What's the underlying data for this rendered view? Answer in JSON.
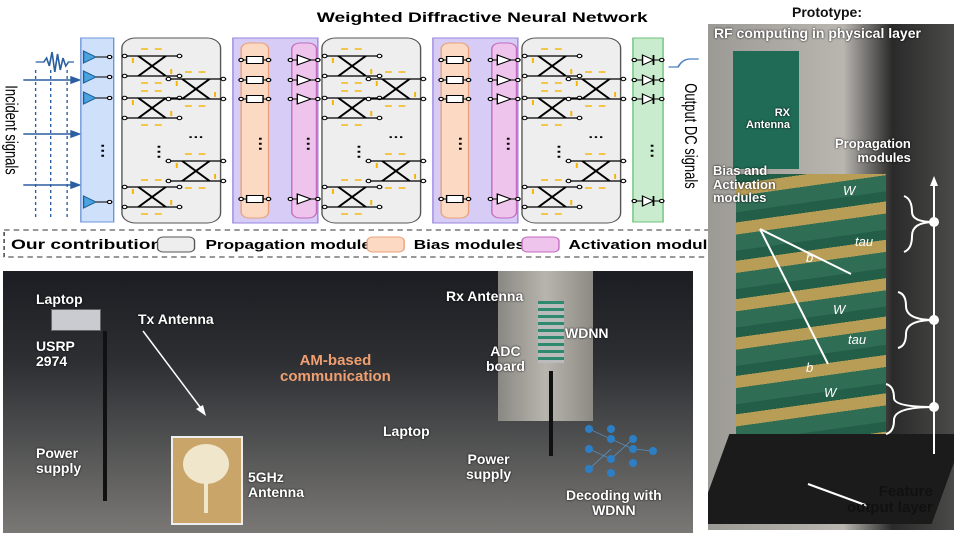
{
  "diagram": {
    "title": "Weighted Diffractive Neural Network",
    "input_label": "Incident signals",
    "output_label": "Output DC signals",
    "legend": {
      "prefix": "Our contributions:",
      "items": [
        {
          "label": "Propagation modules",
          "color": "#eeeeee"
        },
        {
          "label": "Bias modules",
          "color": "#fbd9c3"
        },
        {
          "label": "Activation modules",
          "color": "#eec3ec"
        }
      ]
    },
    "colors": {
      "antenna_layer": "#cfe0fb",
      "bias_activation_group": "#d6ccf5",
      "output_layer": "#c8eccd",
      "phase_shifter": "#f5b400"
    }
  },
  "experiment_photo": {
    "labels": {
      "laptop_left": "Laptop",
      "tx_antenna": "Tx Antenna",
      "usrp": "USRP\n2974",
      "power_supply_left": "Power\nsupply",
      "am_comm": "AM-based\ncommunication",
      "antenna_5ghz": "5GHz\nAntenna",
      "rx_antenna": "Rx Antenna",
      "wdnn": "WDNN",
      "adc_board": "ADC\nboard",
      "laptop_right": "Laptop",
      "power_supply_right": "Power\nsupply",
      "decoding": "Decoding with\nWDNN"
    }
  },
  "prototype": {
    "title_line1": "Prototype:",
    "title_line2": "RF computing in physical layer",
    "rx_antenna": "RX\nAntenna",
    "propagation": "Propagation\nmodules",
    "bias_activation": "Bias and\nActivation\nmodules",
    "feature_output": "Feature\noutput layer",
    "layer_tags": [
      "W",
      "tau",
      "b",
      "W",
      "tau",
      "b",
      "W"
    ]
  }
}
